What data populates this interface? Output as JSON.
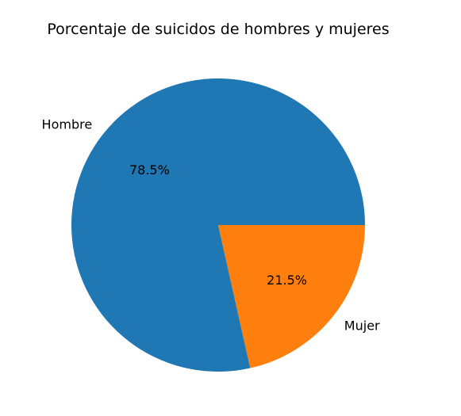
{
  "chart_data": {
    "type": "pie",
    "title": "Porcentaje de suicidos de hombres y mujeres",
    "slices": [
      {
        "label": "Hombre",
        "value": 78.5,
        "pct_label": "78.5%",
        "color": "#1f77b4"
      },
      {
        "label": "Mujer",
        "value": 21.5,
        "pct_label": "21.5%",
        "color": "#ff7f0e"
      }
    ],
    "start_angle_deg": 0,
    "direction": "counterclockwise",
    "legend": "none"
  }
}
